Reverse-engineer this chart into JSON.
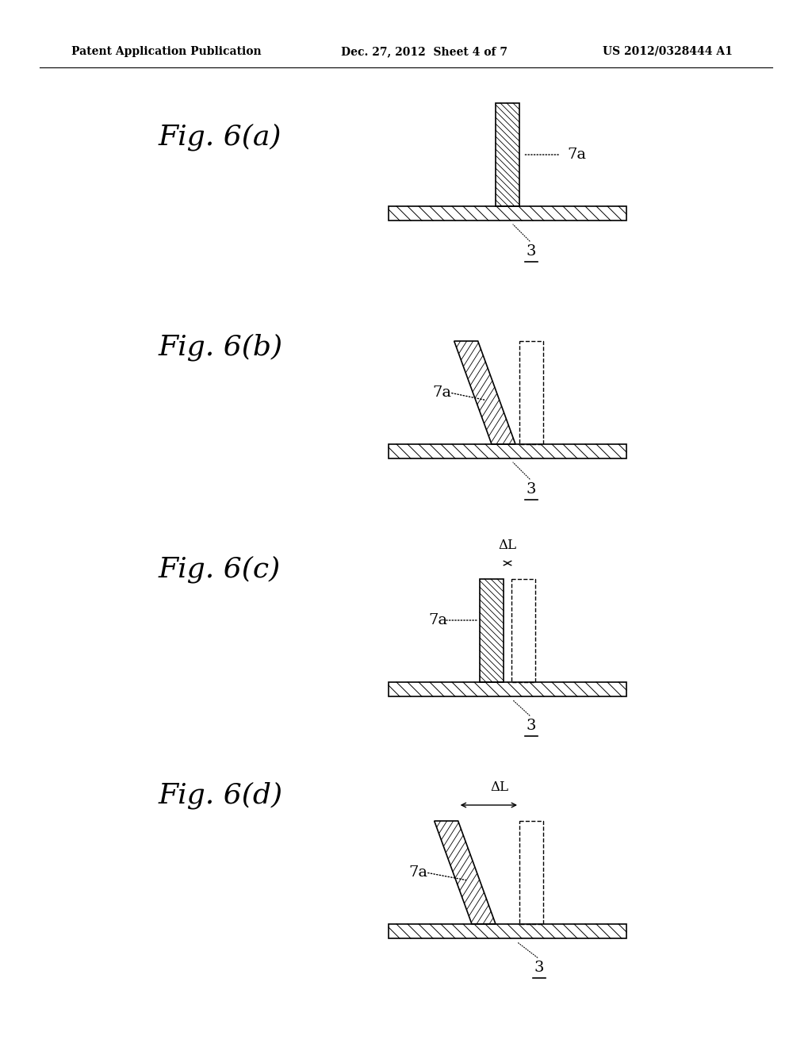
{
  "background_color": "#ffffff",
  "header_left": "Patent Application Publication",
  "header_center": "Dec. 27, 2012  Sheet 4 of 7",
  "header_right": "US 2012/0328444 A1",
  "fig_labels": [
    "Fig. 6(a)",
    "Fig. 6(b)",
    "Fig. 6(c)",
    "Fig. 6(d)"
  ],
  "label_7a": "7a",
  "label_3": "3",
  "label_delta_L": "ΔL",
  "line_color": "#000000",
  "hatch_color": "#000000",
  "dashed_color": "#555555"
}
